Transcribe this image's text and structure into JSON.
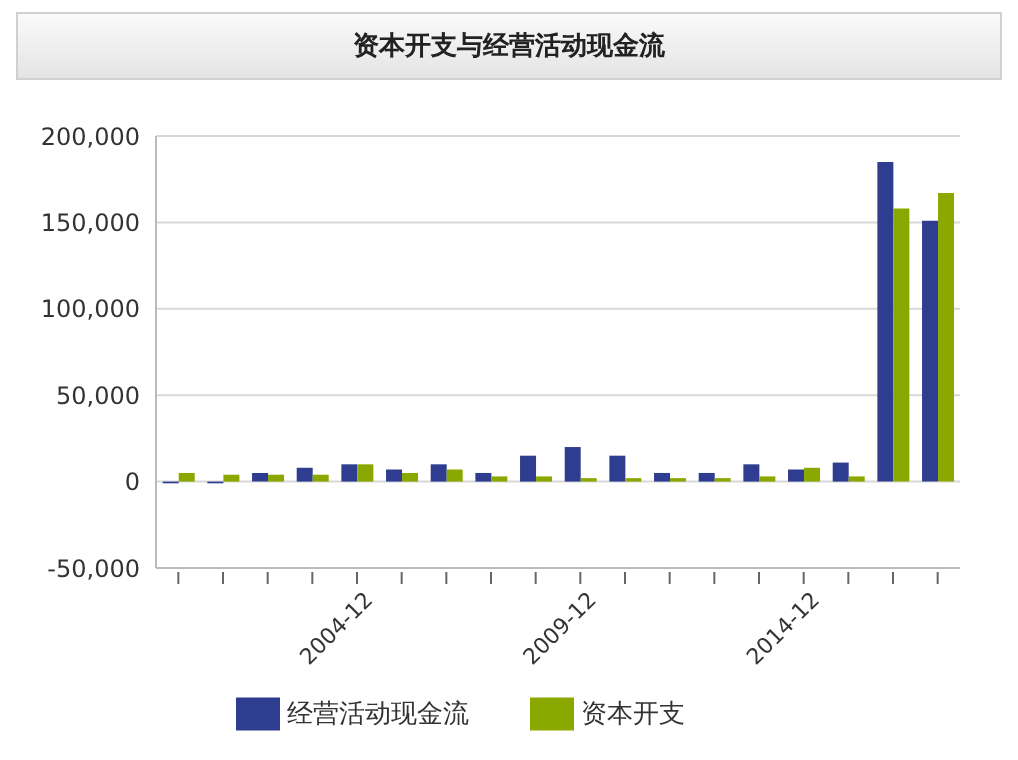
{
  "chart_data": {
    "type": "bar",
    "title": "资本开支与经营活动现金流",
    "categories": [
      null,
      null,
      null,
      null,
      "2004-12",
      null,
      null,
      null,
      null,
      "2009-12",
      null,
      null,
      null,
      null,
      "2014-12",
      null,
      null,
      null
    ],
    "series": [
      {
        "name": "经营活动现金流",
        "color": "#2e3d8f",
        "values": [
          -1000,
          -1000,
          5000,
          8000,
          10000,
          7000,
          10000,
          5000,
          15000,
          20000,
          15000,
          5000,
          5000,
          10000,
          7000,
          11000,
          185000,
          151000
        ]
      },
      {
        "name": "资本开支",
        "color": "#8aa800",
        "values": [
          5000,
          4000,
          4000,
          4000,
          10000,
          5000,
          7000,
          3000,
          3000,
          2000,
          2000,
          2000,
          2000,
          3000,
          8000,
          3000,
          158000,
          167000
        ]
      }
    ],
    "ylim": [
      -50000,
      200000
    ],
    "yticks": [
      {
        "value": -50000,
        "label": "-50,000"
      },
      0,
      {
        "value": 50000,
        "label": "50,000"
      },
      {
        "value": 100000,
        "label": "100,000"
      },
      {
        "value": 150000,
        "label": "150,000"
      },
      {
        "value": 200000,
        "label": "200,000"
      }
    ],
    "grid": "y",
    "legend": "bottom"
  }
}
